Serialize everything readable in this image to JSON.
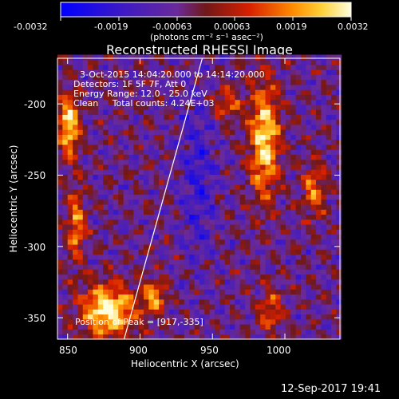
{
  "colorbar": {
    "ticks": [
      "-0.0032",
      "-0.0019",
      "-0.00063",
      "0.00063",
      "0.0019",
      "0.0032"
    ],
    "unit_label": "(photons cm⁻² s⁻¹ asec⁻²)"
  },
  "chart_data": {
    "type": "heatmap",
    "title": "Reconstructed RHESSI Image",
    "xlabel": "Heliocentric X (arcsec)",
    "ylabel": "Heliocentric Y (arcsec)",
    "xlim": [
      843,
      1038
    ],
    "ylim": [
      -365,
      -168
    ],
    "xticks": [
      850,
      900,
      950,
      1000
    ],
    "yticks": [
      -200,
      -250,
      -300,
      -350
    ],
    "color_range": [
      -0.0032,
      0.0032
    ],
    "annotations": [
      "3-Oct-2015 14:04:20.000 to 14:14:20.000",
      "Detectors: 1F 5F 7F, Att 0",
      "Energy Range: 12.0 - 25.0 keV",
      "Clean     Total counts: 4.24E+03"
    ],
    "peak_label": "Position of Peak = [917,-335]",
    "peak": [
      917,
      -335
    ],
    "limb_line": [
      [
        889,
        -365
      ],
      [
        943,
        -168
      ]
    ]
  },
  "footer": {
    "timestamp": "12-Sep-2017 19:41"
  }
}
